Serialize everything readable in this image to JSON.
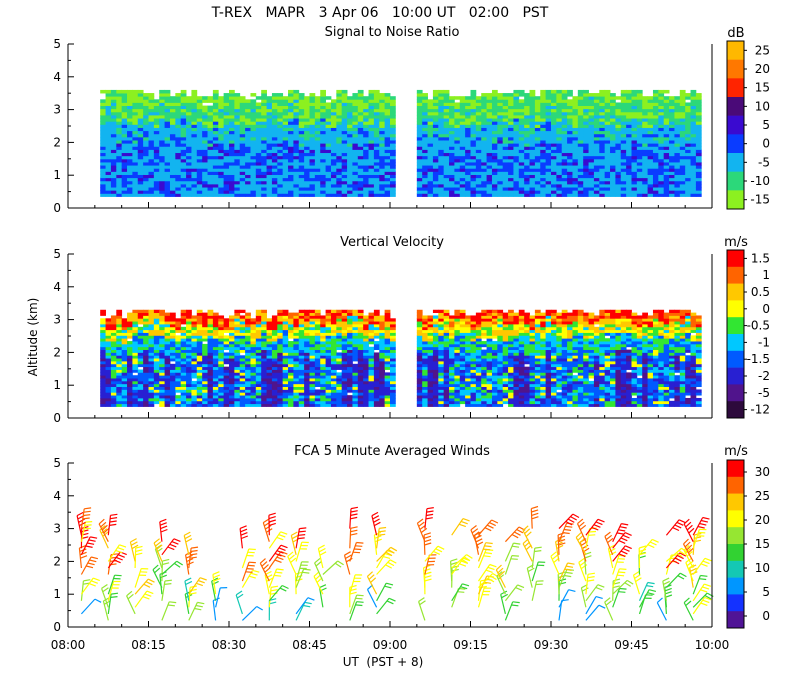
{
  "chart_data": {
    "type": "heatmap",
    "title": "T-REX   MAPR   3 Apr 06   10:00 UT   02:00   PST",
    "xlabel": "UT  (PST + 8)",
    "ylabel": "Altitude (km)",
    "x_ticks": [
      "08:00",
      "08:15",
      "08:30",
      "08:45",
      "09:00",
      "09:15",
      "09:30",
      "09:45",
      "10:00"
    ],
    "x_range_minutes": [
      0,
      120
    ],
    "data_gap_minutes": [
      61,
      65
    ],
    "y_ticks": [
      "0",
      "1",
      "2",
      "3",
      "4",
      "5"
    ],
    "ylim": [
      0,
      5
    ],
    "panels": [
      {
        "id": "snr",
        "title": "Signal to Noise Ratio",
        "unit": "dB",
        "colorbar_labels": [
          "25",
          "20",
          "15",
          "10",
          "5",
          "0",
          "-5",
          "-10",
          "-15"
        ],
        "colors": [
          "#ffb800",
          "#ff7800",
          "#ff2400",
          "#4a0a78",
          "#3a0ad0",
          "#0a3cff",
          "#12b4f0",
          "#2cd87a",
          "#8cf020"
        ],
        "top_altitude_km": 3.6,
        "bottom_altitude_km": 0.35
      },
      {
        "id": "vv",
        "title": "Vertical Velocity",
        "unit": "m/s",
        "colorbar_labels": [
          "1.5",
          "1",
          "0.5",
          "0",
          "-0.5",
          "-1",
          "-1.5",
          "-2",
          "-5",
          "-12"
        ],
        "colors": [
          "#ff0000",
          "#ff6400",
          "#ffc800",
          "#ffff00",
          "#32e632",
          "#00c8ff",
          "#005aff",
          "#2820d2",
          "#50148c",
          "#2d0a3c"
        ],
        "top_altitude_km": 3.3,
        "bottom_altitude_km": 0.35
      },
      {
        "id": "winds",
        "title": "FCA 5 Minute Averaged Winds",
        "unit": "m/s",
        "colorbar_labels": [
          "30",
          "25",
          "20",
          "15",
          "10",
          "5",
          "0"
        ],
        "colors": [
          "#ff0000",
          "#ff6400",
          "#ffc800",
          "#ffff00",
          "#96e632",
          "#32d232",
          "#14c8b4",
          "#0096ff",
          "#1432ff",
          "#501496"
        ],
        "wind_levels_km": [
          0.2,
          0.4,
          0.6,
          0.8,
          1.0,
          1.2,
          1.4,
          1.6,
          1.8,
          2.0,
          2.2,
          2.4,
          2.6,
          2.8,
          3.0
        ],
        "column_times_minutes": [
          2.5,
          7.5,
          12.5,
          17.5,
          22.5,
          27.5,
          32.5,
          37.5,
          42.5,
          47.5,
          52.5,
          57.5,
          66.5,
          71.5,
          76.5,
          81.5,
          86.5,
          91.5,
          96.5,
          101.5,
          106.5,
          111.5,
          116.5
        ],
        "speed_range": [
          0,
          30
        ]
      }
    ]
  }
}
